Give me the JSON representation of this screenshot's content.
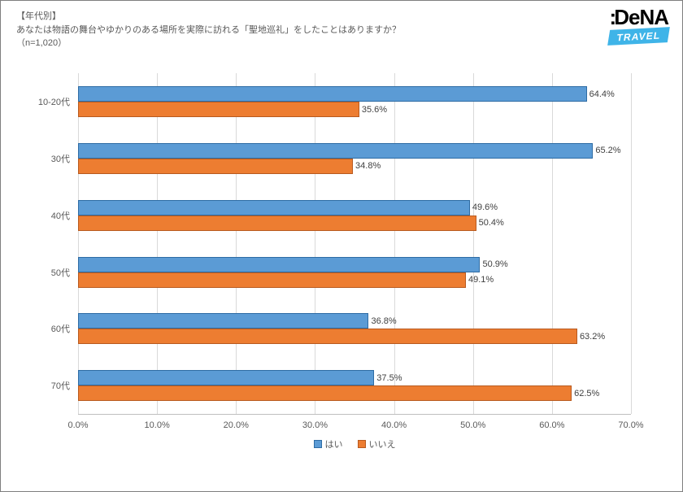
{
  "header": {
    "line1": "【年代別】",
    "line2": "あなたは物語の舞台やゆかりのある場所を実際に訪れる「聖地巡礼」をしたことはありますか？",
    "line3": "（n=1,020）"
  },
  "logo": {
    "main": ":DeNA",
    "sub": "TRAVEL"
  },
  "chart": {
    "type": "bar_horizontal_grouped",
    "x_min": 0,
    "x_max": 70,
    "x_step": 10,
    "x_suffix": ".0%",
    "categories": [
      {
        "label": "10-20代",
        "yes": 64.4,
        "no": 35.6
      },
      {
        "label": "30代",
        "yes": 65.2,
        "no": 34.8
      },
      {
        "label": "40代",
        "yes": 49.6,
        "no": 50.4
      },
      {
        "label": "50代",
        "yes": 50.9,
        "no": 49.1
      },
      {
        "label": "60代",
        "yes": 36.8,
        "no": 63.2
      },
      {
        "label": "70代",
        "yes": 37.5,
        "no": 62.5
      }
    ],
    "series": {
      "yes": {
        "label": "はい",
        "fill": "#5b9bd5",
        "border": "#2e6ca4"
      },
      "no": {
        "label": "いいえ",
        "fill": "#ed7d31",
        "border": "#b85a1f"
      }
    },
    "grid_color": "#d9d9d9",
    "axis_color": "#bfbfbf",
    "text_color": "#595959",
    "background_color": "#ffffff",
    "value_suffix": "%"
  }
}
